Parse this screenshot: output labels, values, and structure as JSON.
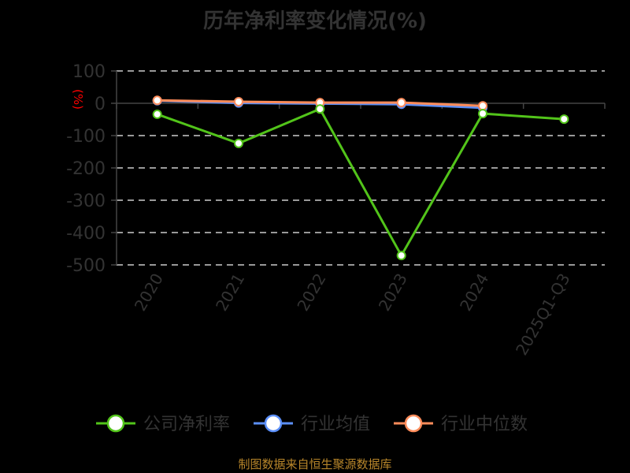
{
  "title": "历年净利率变化情况(%)",
  "y_unit_label": "(%)",
  "footer": "制图数据来自恒生聚源数据库",
  "colors": {
    "company": "#52c41a",
    "industry_avg": "#5b8ff9",
    "industry_median": "#ff8c5a",
    "axis_text": "#333333",
    "grid": "#cccccc",
    "unit_label": "#ff0000",
    "footer": "#b8862a"
  },
  "legend": [
    {
      "name": "公司净利率",
      "color": "#52c41a"
    },
    {
      "name": "行业均值",
      "color": "#5b8ff9"
    },
    {
      "name": "行业中位数",
      "color": "#ff8c5a"
    }
  ],
  "chart_data": {
    "type": "line",
    "title": "历年净利率变化情况(%)",
    "xlabel": "",
    "ylabel": "(%)",
    "categories": [
      "2020",
      "2021",
      "2022",
      "2023",
      "2024",
      "2025Q1-Q3"
    ],
    "yticks": [
      100,
      0,
      -100,
      -200,
      -300,
      -400,
      -500
    ],
    "ylim": [
      -500,
      100
    ],
    "grid": true,
    "legend_position": "bottom",
    "series": [
      {
        "name": "公司净利率",
        "values": [
          -34,
          -124,
          -17.6,
          -471,
          -32,
          -49
        ]
      },
      {
        "name": "行业均值",
        "values": [
          8,
          1,
          -1,
          -3,
          -14,
          null
        ]
      },
      {
        "name": "行业中位数",
        "values": [
          9,
          5,
          2,
          2,
          -8,
          null
        ]
      }
    ]
  }
}
